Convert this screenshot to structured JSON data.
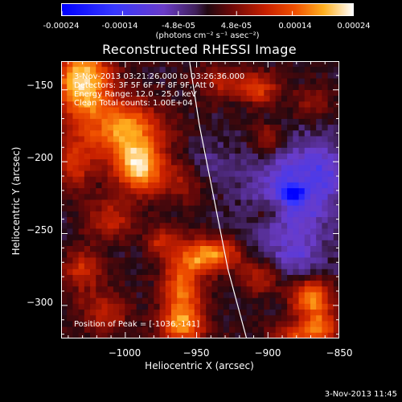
{
  "colorbar": {
    "tick_labels": [
      "-0.00024",
      "-0.00014",
      "-4.8e-05",
      "4.8e-05",
      "0.00014",
      "0.00024"
    ],
    "units": "(photons cm⁻² s⁻¹ asec⁻²)",
    "range": [
      -0.00024,
      0.00024
    ]
  },
  "chart_data": {
    "type": "heatmap",
    "title": "Reconstructed RHESSI Image",
    "xlabel": "Heliocentric X (arcsec)",
    "ylabel": "Heliocentric Y (arcsec)",
    "xlim": [
      -1045,
      -850
    ],
    "ylim": [
      -323,
      -130
    ],
    "x_ticks": [
      -1000,
      -950,
      -900,
      -850
    ],
    "y_ticks": [
      -150,
      -200,
      -250,
      -300
    ],
    "x_tick_labels": [
      "−1000",
      "−950",
      "−900",
      "−850"
    ],
    "y_tick_labels": [
      "−150",
      "−200",
      "−250",
      "−300"
    ],
    "annotations": [
      "3-Nov-2013 03:21:26.000 to 03:26:36.000",
      "Detectors: 3F 5F 6F 7F 8F 9F, Att 0",
      "Energy Range: 12.0 - 25.0 keV",
      "Clean    Total counts: 1.00E+04"
    ],
    "peak_label": "Position of Peak = [-1036,-141]",
    "blobs": [
      {
        "x": -1030,
        "y": -145,
        "sx": 14,
        "sy": 18,
        "v": 0.00022
      },
      {
        "x": -1000,
        "y": -178,
        "sx": 18,
        "sy": 14,
        "v": 0.00018
      },
      {
        "x": -990,
        "y": -205,
        "sx": 12,
        "sy": 12,
        "v": 0.0002
      },
      {
        "x": -1035,
        "y": -200,
        "sx": 10,
        "sy": 14,
        "v": 0.0001
      },
      {
        "x": -1010,
        "y": -240,
        "sx": 12,
        "sy": 10,
        "v": 9e-05
      },
      {
        "x": -1030,
        "y": -275,
        "sx": 10,
        "sy": 10,
        "v": 0.0001
      },
      {
        "x": -1015,
        "y": -305,
        "sx": 12,
        "sy": 10,
        "v": 9e-05
      },
      {
        "x": -960,
        "y": -290,
        "sx": 10,
        "sy": 18,
        "v": 0.00016
      },
      {
        "x": -940,
        "y": -265,
        "sx": 14,
        "sy": 8,
        "v": 0.00018
      },
      {
        "x": -960,
        "y": -315,
        "sx": 12,
        "sy": 8,
        "v": 0.00012
      },
      {
        "x": -905,
        "y": -280,
        "sx": 10,
        "sy": 8,
        "v": 0.0001
      },
      {
        "x": -870,
        "y": -295,
        "sx": 10,
        "sy": 10,
        "v": 0.00017
      },
      {
        "x": -862,
        "y": -315,
        "sx": 8,
        "sy": 8,
        "v": 0.00012
      },
      {
        "x": -880,
        "y": -320,
        "sx": 12,
        "sy": 6,
        "v": 0.00011
      },
      {
        "x": -930,
        "y": -145,
        "sx": 14,
        "sy": 8,
        "v": 8e-05
      },
      {
        "x": -905,
        "y": -150,
        "sx": 10,
        "sy": 8,
        "v": 0.0001
      },
      {
        "x": -900,
        "y": -185,
        "sx": 8,
        "sy": 8,
        "v": 9e-05
      },
      {
        "x": -870,
        "y": -160,
        "sx": 10,
        "sy": 8,
        "v": 6e-05
      },
      {
        "x": -900,
        "y": -235,
        "sx": 10,
        "sy": 8,
        "v": 7e-05
      },
      {
        "x": -960,
        "y": -215,
        "sx": 10,
        "sy": 10,
        "v": 6e-05
      },
      {
        "x": -975,
        "y": -255,
        "sx": 8,
        "sy": 8,
        "v": 8e-05
      },
      {
        "x": -885,
        "y": -225,
        "sx": 22,
        "sy": 28,
        "v": -0.00011
      },
      {
        "x": -882,
        "y": -222,
        "sx": 5,
        "sy": 4,
        "v": -0.00018
      },
      {
        "x": -860,
        "y": -205,
        "sx": 10,
        "sy": 14,
        "v": -6e-05
      },
      {
        "x": -880,
        "y": -270,
        "sx": 14,
        "sy": 10,
        "v": -5e-05
      },
      {
        "x": -940,
        "y": -200,
        "sx": 10,
        "sy": 10,
        "v": -4e-05
      }
    ],
    "limb_curve": [
      [
        -955,
        -130
      ],
      [
        -948,
        -175
      ],
      [
        -938,
        -225
      ],
      [
        -928,
        -275
      ],
      [
        -915,
        -323
      ]
    ]
  },
  "timestamp": "3-Nov-2013 11:45"
}
